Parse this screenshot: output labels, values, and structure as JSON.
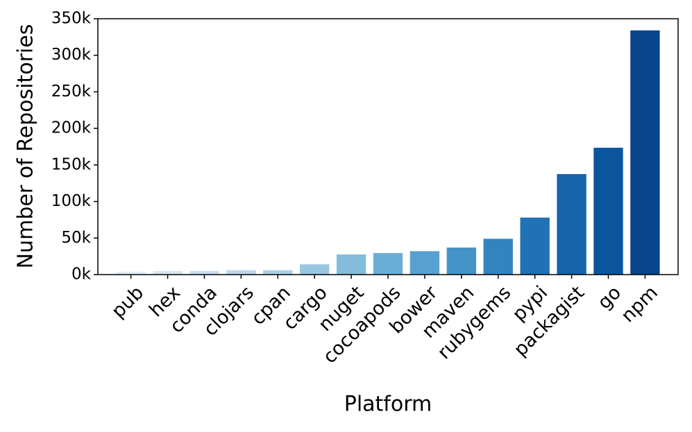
{
  "chart_data": {
    "type": "bar",
    "x_label": "Platform",
    "y_label": "Number of Repositories",
    "categories": [
      "pub",
      "hex",
      "conda",
      "clojars",
      "cpan",
      "cargo",
      "nuget",
      "cocoapods",
      "bower",
      "maven",
      "rubygems",
      "pypi",
      "packagist",
      "go",
      "npm"
    ],
    "values": [
      4000,
      5000,
      5000,
      6000,
      6000,
      14000,
      27500,
      29500,
      32000,
      37000,
      49000,
      78000,
      137500,
      173500,
      334000
    ],
    "colors": [
      "#e1edf8",
      "#d6e6f4",
      "#cadef0",
      "#bdd7ec",
      "#acd0e6",
      "#98c6df",
      "#84bcdb",
      "#6aaed6",
      "#58a1cf",
      "#4593c6",
      "#3383be",
      "#2171b5",
      "#1663aa",
      "#0b559f",
      "#08458a"
    ],
    "ylim": [
      0,
      350000
    ],
    "yticks": [
      {
        "value": 0,
        "label": "0k"
      },
      {
        "value": 50000,
        "label": "50k"
      },
      {
        "value": 100000,
        "label": "100k"
      },
      {
        "value": 150000,
        "label": "150k"
      },
      {
        "value": 200000,
        "label": "200k"
      },
      {
        "value": 250000,
        "label": "250k"
      },
      {
        "value": 300000,
        "label": "300k"
      },
      {
        "value": 350000,
        "label": "350k"
      }
    ]
  }
}
